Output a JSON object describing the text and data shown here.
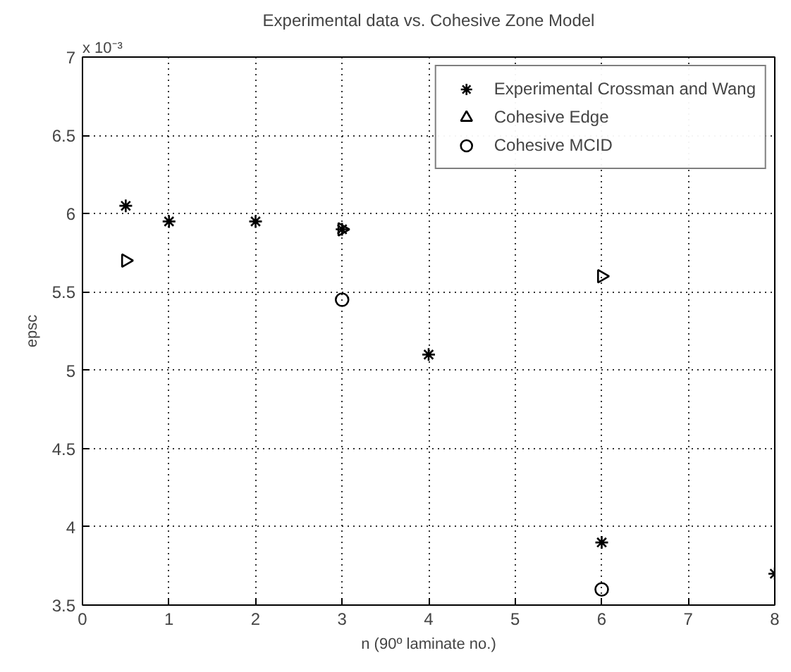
{
  "chart_data": {
    "type": "scatter",
    "title": "Experimental data vs. Cohesive Zone Model",
    "xlabel": "n (90º laminate no.)",
    "ylabel": "epsc",
    "annotations": [
      "x 10⁻³"
    ],
    "series": [
      {
        "name": "Experimental Crossman and Wang",
        "color": "#000000",
        "marker": "cross",
        "x": [
          0.5,
          1,
          2,
          3,
          4,
          6,
          8
        ],
        "values": [
          6.05,
          5.95,
          5.95,
          5.9,
          5.1,
          3.9,
          3.7
        ]
      },
      {
        "name": "Cohesive Edge",
        "color": "#000000",
        "marker": "triangle",
        "x": [
          0.5,
          3,
          6
        ],
        "values": [
          5.7,
          5.9,
          5.6
        ]
      },
      {
        "name": "Cohesive MCID",
        "color": "#000000",
        "marker": "circle",
        "x": [
          3,
          6
        ],
        "values": [
          5.45,
          3.6
        ]
      }
    ],
    "xlim": [
      0,
      8
    ],
    "ylim": [
      3.5,
      7
    ],
    "xticks": [
      0,
      1,
      2,
      3,
      4,
      5,
      6,
      7,
      8
    ],
    "yticks": [
      3.5,
      4,
      4.5,
      5,
      5.5,
      6,
      6.5,
      7
    ],
    "grid": true,
    "legend": "top right"
  }
}
